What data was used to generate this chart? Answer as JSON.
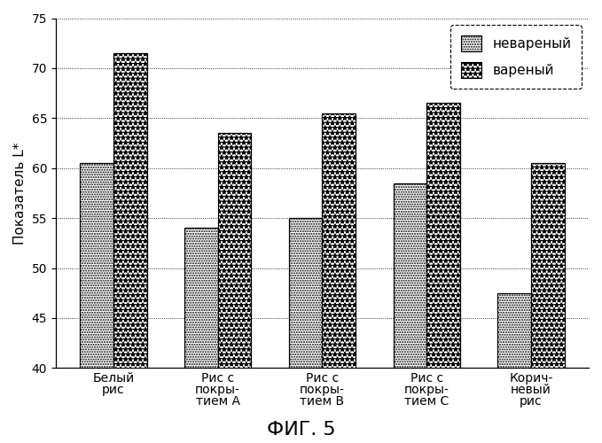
{
  "categories": [
    "Белый\nрис",
    "Рис с\nпокры-\nтием А",
    "Рис с\nпокры-\nтием В",
    "Рис с\nпокры-\nтием С",
    "Корич-\nневый\nрис"
  ],
  "uncooked": [
    60.5,
    54.0,
    55.0,
    58.5,
    47.5
  ],
  "cooked": [
    71.5,
    63.5,
    65.5,
    66.5,
    60.5
  ],
  "ylabel": "Показатель L*",
  "ylim": [
    40,
    75
  ],
  "yticks": [
    40,
    45,
    50,
    55,
    60,
    65,
    70,
    75
  ],
  "legend_uncooked": "невареный",
  "legend_cooked": "вареный",
  "fig_label": "ФИГ. 5",
  "bg_color": "#ffffff",
  "bar_width": 0.32,
  "axis_fontsize": 11,
  "tick_fontsize": 10,
  "legend_fontsize": 11,
  "fig_label_fontsize": 16
}
